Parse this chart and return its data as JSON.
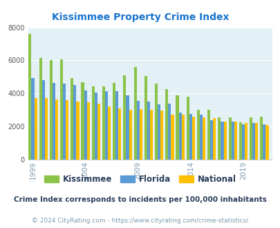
{
  "title": "Kissimmee Property Crime Index",
  "subtitle": "Crime Index corresponds to incidents per 100,000 inhabitants",
  "copyright": "© 2024 CityRating.com - https://www.cityrating.com/crime-statistics/",
  "years": [
    1999,
    2000,
    2001,
    2002,
    2003,
    2004,
    2005,
    2006,
    2007,
    2008,
    2009,
    2010,
    2011,
    2012,
    2013,
    2014,
    2015,
    2016,
    2017,
    2018,
    2019,
    2020,
    2021
  ],
  "kissimmee": [
    7600,
    6150,
    6000,
    6050,
    4950,
    4700,
    4450,
    4450,
    4650,
    5100,
    5600,
    5050,
    4600,
    4250,
    3900,
    3800,
    3000,
    3000,
    2550,
    2550,
    2250,
    2550,
    2600
  ],
  "florida": [
    4950,
    4800,
    4650,
    4600,
    4500,
    4200,
    4050,
    4150,
    4150,
    3900,
    3550,
    3500,
    3350,
    3400,
    2850,
    2750,
    2700,
    2400,
    2300,
    2300,
    2150,
    2200,
    2150
  ],
  "national": [
    3700,
    3700,
    3650,
    3600,
    3500,
    3450,
    3400,
    3200,
    3100,
    3000,
    3050,
    3000,
    2950,
    2700,
    2700,
    2600,
    2550,
    2500,
    2300,
    2300,
    2200,
    2200,
    2100
  ],
  "kissimmee_color": "#8BC34A",
  "florida_color": "#5B9BD5",
  "national_color": "#FFC000",
  "bg_color": "#FFFFFF",
  "plot_bg_color": "#E3F0F5",
  "title_color": "#1874CD",
  "subtitle_color": "#2a3e5c",
  "copyright_color": "#7a9ab0",
  "ylim": [
    0,
    8000
  ],
  "yticks": [
    0,
    2000,
    4000,
    6000,
    8000
  ],
  "xtick_labels": [
    "1999",
    "2004",
    "2009",
    "2014",
    "2019"
  ],
  "xtick_positions": [
    1999,
    2004,
    2009,
    2014,
    2019
  ],
  "legend_labels": [
    "Kissimmee",
    "Florida",
    "National"
  ]
}
